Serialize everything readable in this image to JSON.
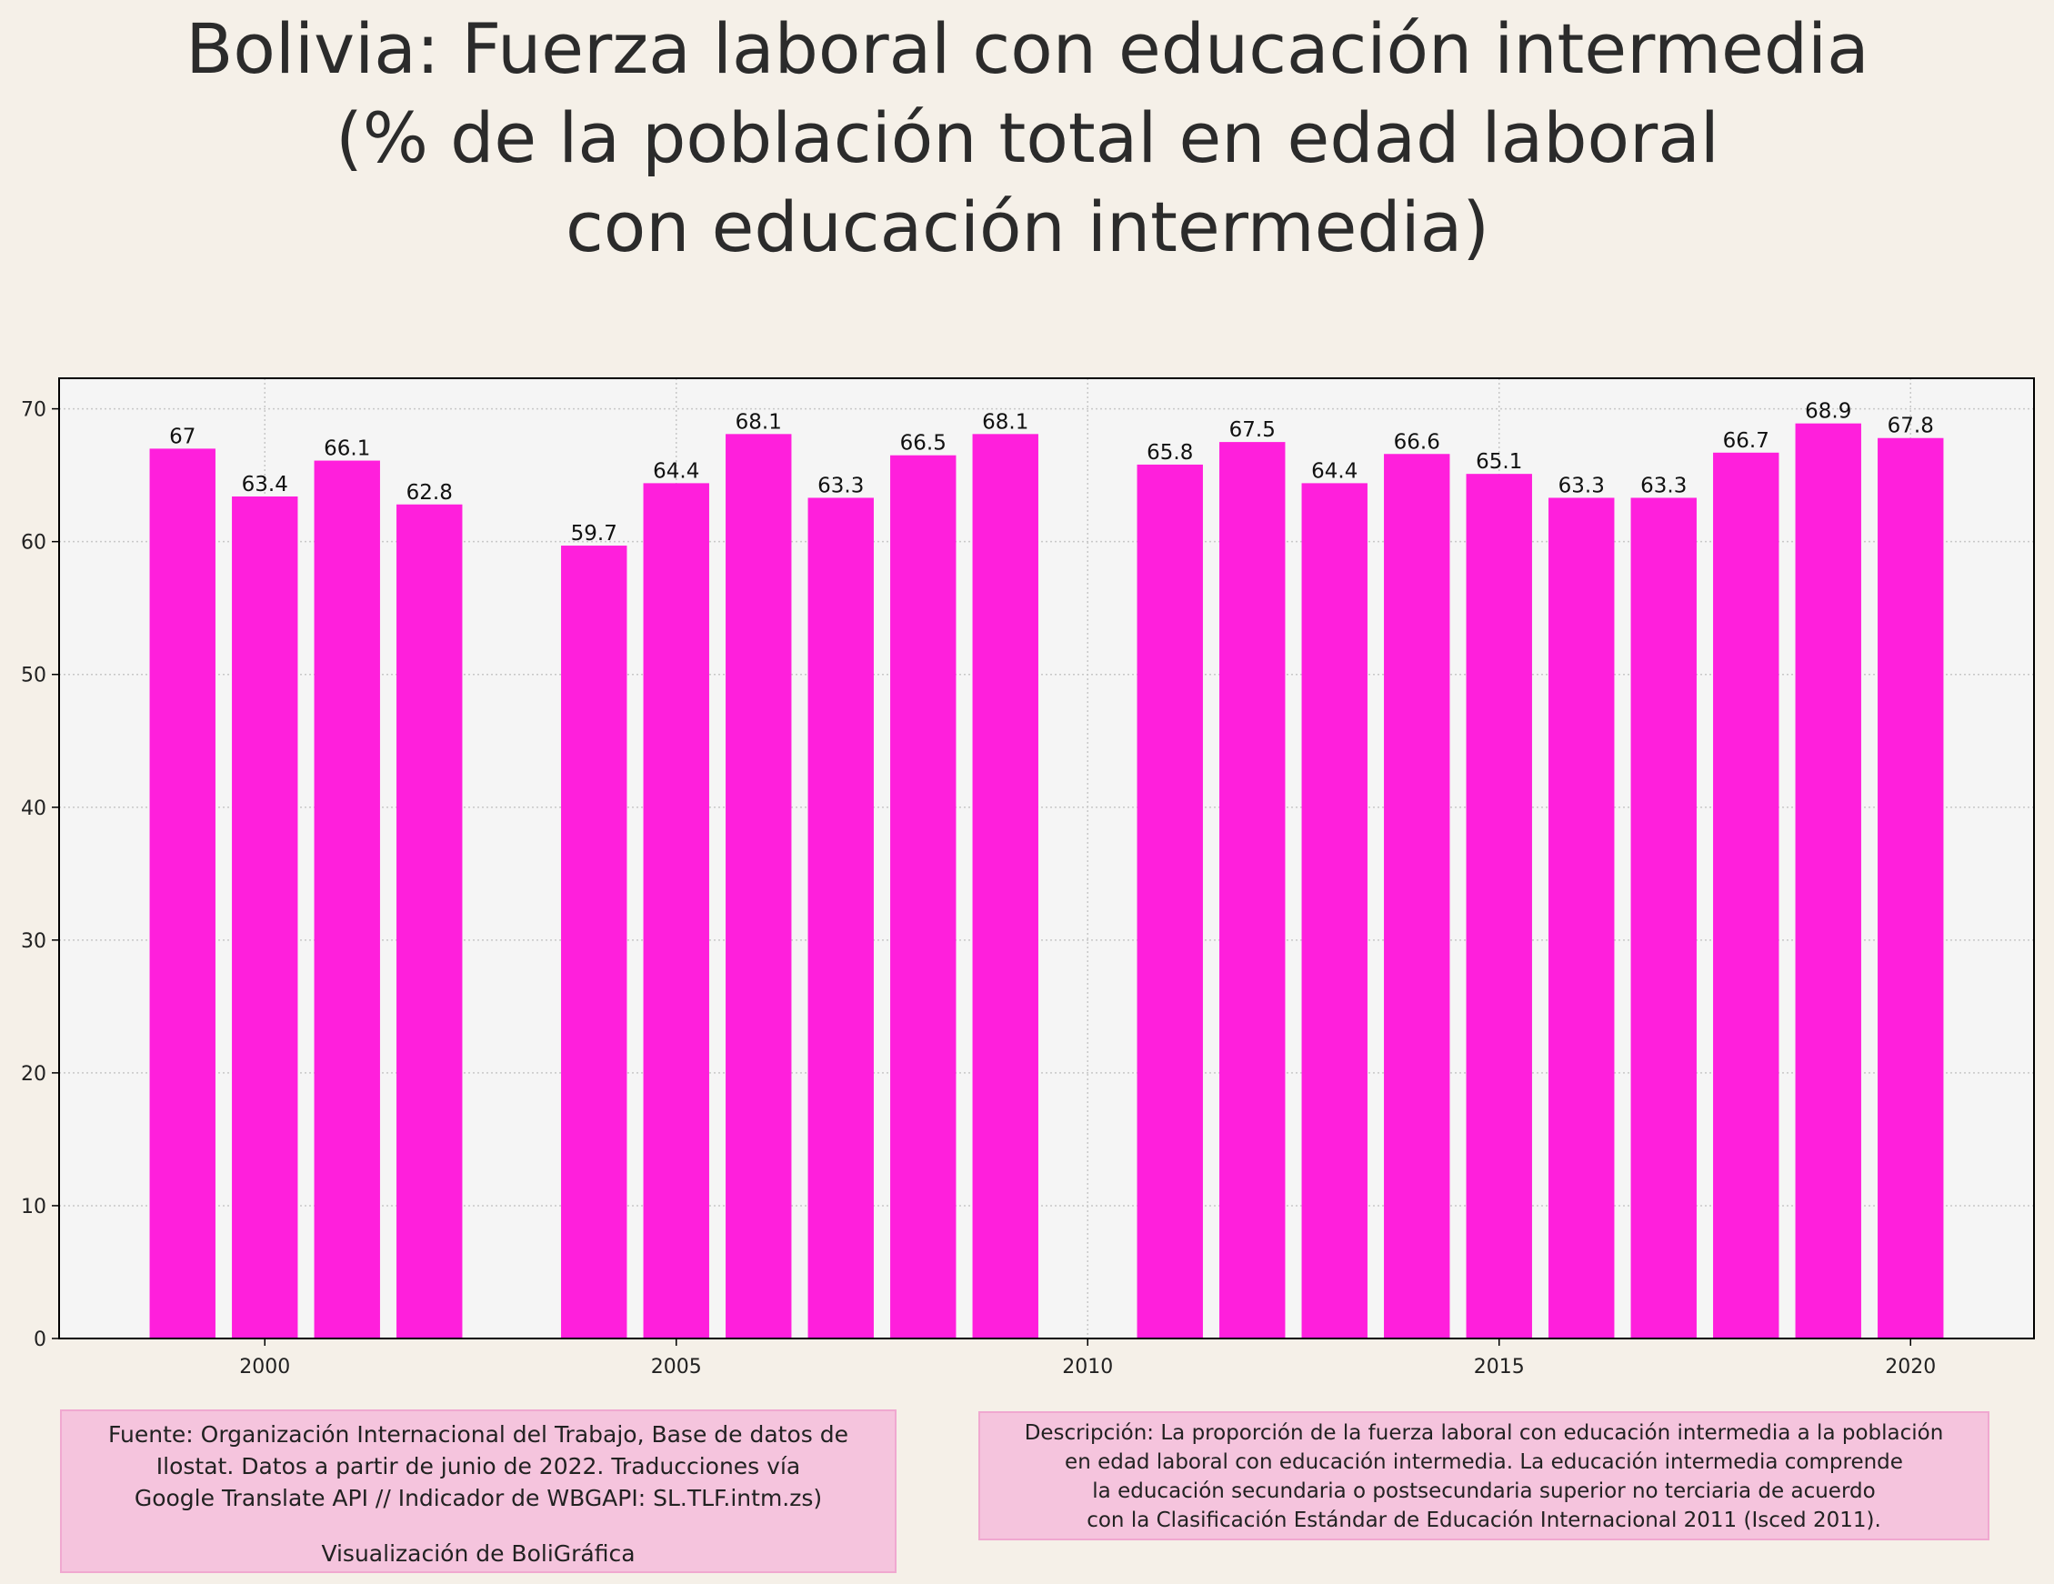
{
  "chart_data": {
    "type": "bar",
    "title": [
      "Bolivia:  Fuerza laboral con educación intermedia",
      "(% de la población total en edad laboral",
      "con educación intermedia)"
    ],
    "x": [
      1999,
      2000,
      2001,
      2002,
      2004,
      2005,
      2006,
      2007,
      2008,
      2009,
      2011,
      2012,
      2013,
      2014,
      2015,
      2016,
      2017,
      2018,
      2019,
      2020
    ],
    "values": [
      67,
      63.4,
      66.1,
      62.8,
      59.7,
      64.4,
      68.1,
      63.3,
      66.5,
      68.1,
      65.8,
      67.5,
      64.4,
      66.6,
      65.1,
      63.3,
      63.3,
      66.7,
      68.9,
      67.8
    ],
    "color": "#ff1fdc",
    "xlim": [
      1997.5,
      2021.5
    ],
    "xticks": [
      2000,
      2005,
      2010,
      2015,
      2020
    ],
    "ylim": [
      0,
      72.3
    ],
    "yticks": [
      0,
      10,
      20,
      30,
      40,
      50,
      60,
      70
    ],
    "grid": true
  },
  "source": {
    "lines": [
      "Fuente: Organización Internacional del Trabajo, Base de datos de",
      "Ilostat. Datos a partir de junio de 2022. Traducciones vía",
      "Google Translate API // Indicador de WBGAPI: SL.TLF.intm.zs)"
    ],
    "credit": "Visualización de BoliGráfica"
  },
  "description": {
    "lines": [
      "Descripción: La proporción de la fuerza laboral con educación intermedia a la población",
      "en edad laboral con educación intermedia. La educación intermedia comprende",
      "la educación secundaria o postsecundaria superior no terciaria de acuerdo",
      "con la Clasificación Estándar de Educación Internacional 2011 (Isced 2011)."
    ]
  }
}
